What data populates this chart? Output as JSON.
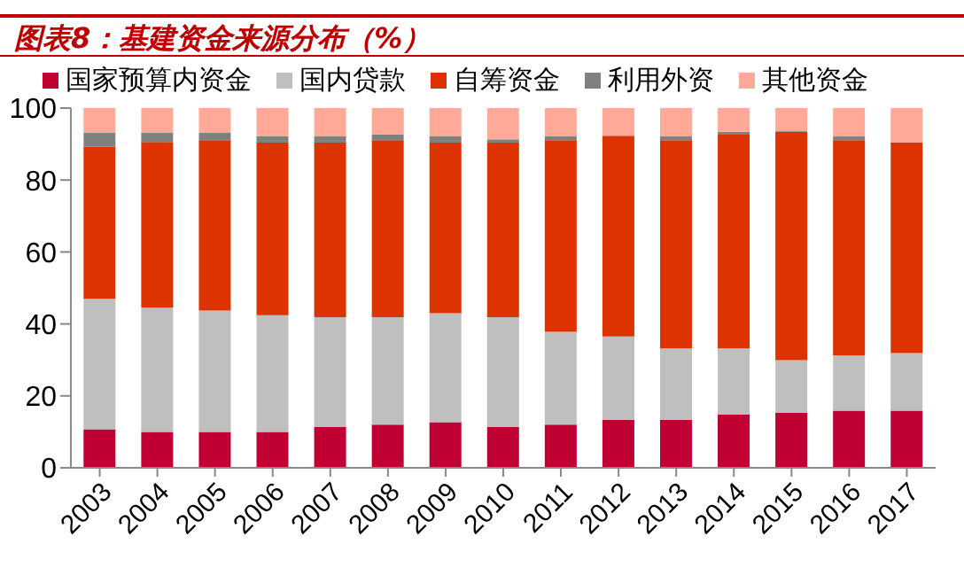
{
  "chart_data": {
    "type": "bar",
    "title": "图表8：基建资金来源分布（%）",
    "stacked": true,
    "legend": "top",
    "grid": false,
    "categories": [
      "2003",
      "2004",
      "2005",
      "2006",
      "2007",
      "2008",
      "2009",
      "2010",
      "2011",
      "2012",
      "2013",
      "2014",
      "2015",
      "2016",
      "2017"
    ],
    "ylim": [
      0,
      100
    ],
    "yticks": [
      0,
      20,
      40,
      60,
      80,
      100
    ],
    "series": [
      {
        "name": "国家预算内资金",
        "color": "#c00032",
        "values": [
          10.7,
          10.0,
          10.0,
          10.0,
          11.3,
          12.0,
          12.7,
          11.3,
          12.0,
          13.3,
          13.3,
          14.8,
          15.3,
          15.9,
          15.9
        ]
      },
      {
        "name": "国内贷款",
        "color": "#bfbfbf",
        "values": [
          36.3,
          34.5,
          33.7,
          32.4,
          30.6,
          29.9,
          30.3,
          30.6,
          25.8,
          23.2,
          19.9,
          18.4,
          14.6,
          15.3,
          16.0
        ]
      },
      {
        "name": "自筹资金",
        "color": "#dd3300",
        "values": [
          42.3,
          46.1,
          47.4,
          48.0,
          48.5,
          49.2,
          47.4,
          48.5,
          53.3,
          55.8,
          57.9,
          59.4,
          63.5,
          59.9,
          58.5
        ]
      },
      {
        "name": "利用外资",
        "color": "#808080",
        "values": [
          3.9,
          2.6,
          2.1,
          1.7,
          1.7,
          1.5,
          1.7,
          0.9,
          1.0,
          null,
          1.0,
          0.8,
          0.2,
          1.0,
          null
        ]
      },
      {
        "name": "其他资金",
        "color": "#ffaa99",
        "values": [
          6.8,
          6.8,
          6.8,
          7.9,
          7.9,
          7.4,
          7.9,
          8.7,
          7.9,
          7.7,
          7.9,
          6.6,
          6.4,
          7.9,
          9.6
        ]
      }
    ]
  }
}
